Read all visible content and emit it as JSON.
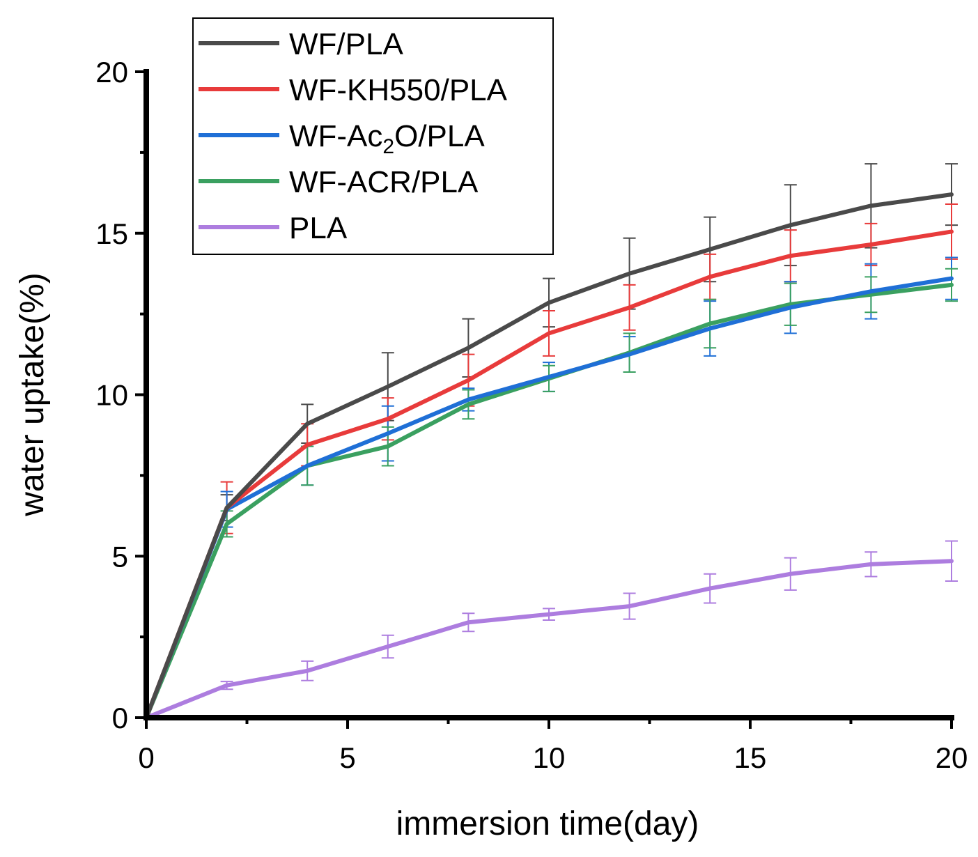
{
  "chart_data": {
    "type": "line",
    "xlabel": "immersion time(day)",
    "ylabel": "water uptake(%)",
    "xlim": [
      0,
      20
    ],
    "ylim": [
      0,
      20
    ],
    "xticks": [
      0,
      5,
      10,
      15,
      20
    ],
    "yticks": [
      0,
      5,
      10,
      15,
      20
    ],
    "x": [
      0,
      2,
      4,
      6,
      8,
      10,
      12,
      14,
      16,
      18,
      20
    ],
    "legend_position": "top-left",
    "series": [
      {
        "name": "WF/PLA",
        "label_parts": [
          "WF/PLA"
        ],
        "color": "#4a4a4a",
        "values": [
          0,
          6.5,
          9.1,
          10.25,
          11.45,
          12.85,
          13.75,
          14.5,
          15.25,
          15.85,
          16.2
        ],
        "errors": [
          0,
          0.4,
          0.6,
          1.05,
          0.9,
          0.75,
          1.1,
          1.0,
          1.25,
          1.3,
          0.95
        ]
      },
      {
        "name": "WF-KH550/PLA",
        "label_parts": [
          "WF-KH550/PLA"
        ],
        "color": "#e83b3b",
        "values": [
          0,
          6.5,
          8.45,
          9.25,
          10.45,
          11.9,
          12.7,
          13.65,
          14.3,
          14.65,
          15.05
        ],
        "errors": [
          0,
          0.8,
          0.65,
          0.65,
          0.8,
          0.7,
          0.7,
          0.7,
          0.8,
          0.65,
          0.85
        ]
      },
      {
        "name": "WF-Ac2O/PLA",
        "label_parts": [
          "WF-Ac",
          "2",
          "O/PLA"
        ],
        "color": "#1f6fd6",
        "values": [
          0,
          6.45,
          7.8,
          8.8,
          9.85,
          10.55,
          11.25,
          12.05,
          12.7,
          13.2,
          13.6
        ],
        "errors": [
          0,
          0.55,
          0.6,
          0.85,
          0.35,
          0.45,
          0.55,
          0.85,
          0.8,
          0.85,
          0.65
        ]
      },
      {
        "name": "WF-ACR/PLA",
        "label_parts": [
          "WF-ACR/PLA"
        ],
        "color": "#3aa060",
        "values": [
          0,
          6.0,
          7.8,
          8.4,
          9.7,
          10.5,
          11.3,
          12.2,
          12.8,
          13.1,
          13.4
        ],
        "errors": [
          0,
          0.4,
          0.6,
          0.6,
          0.45,
          0.4,
          0.6,
          0.75,
          0.65,
          0.55,
          0.5
        ]
      },
      {
        "name": "PLA",
        "label_parts": [
          "PLA"
        ],
        "color": "#ad7ddf",
        "values": [
          0,
          1.0,
          1.45,
          2.2,
          2.95,
          3.2,
          3.45,
          4.0,
          4.45,
          4.75,
          4.85
        ],
        "errors": [
          0,
          0.12,
          0.3,
          0.35,
          0.28,
          0.18,
          0.4,
          0.45,
          0.5,
          0.38,
          0.62
        ]
      }
    ]
  }
}
